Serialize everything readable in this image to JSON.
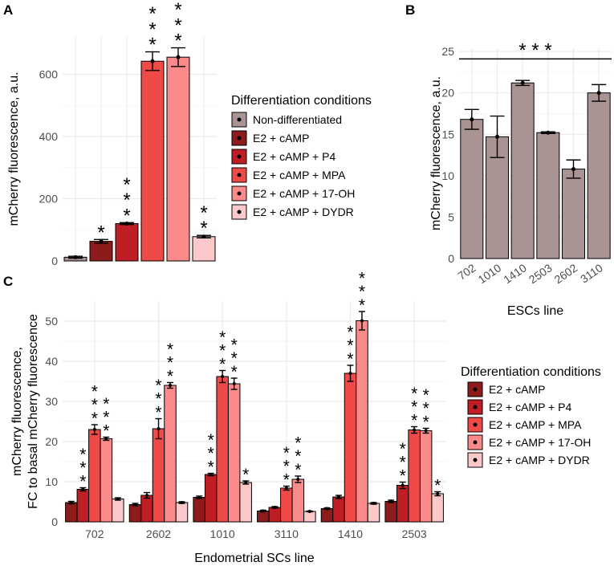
{
  "legend": {
    "title": "Differentiation conditions",
    "items": [
      "Non-differentiated",
      "E2 + cAMP",
      "E2 + cAMP + P4",
      "E2 + cAMP + MPA",
      "E2 + cAMP + 17-OH",
      "E2 + cAMP + DYDR"
    ]
  },
  "colors": {
    "Non-differentiated": "#a99393",
    "E2 + cAMP": "#8e1b1b",
    "E2 + cAMP + P4": "#be1e24",
    "E2 + cAMP + MPA": "#ee4a48",
    "E2 + cAMP + 17-OH": "#fb8a8a",
    "E2 + cAMP + DYDR": "#fcc9cb",
    "grid": "#ebebeb"
  },
  "chart_data": [
    {
      "panel": "A",
      "type": "bar",
      "ylabel": "mCherry fluorescence, a.u.",
      "xlabel": "",
      "ylim": [
        0,
        720
      ],
      "yticks": [
        0,
        200,
        400,
        600
      ],
      "categories": [
        "Non-differentiated",
        "E2 + cAMP",
        "E2 + cAMP + P4",
        "E2 + cAMP + MPA",
        "E2 + cAMP + 17-OH",
        "E2 + cAMP + DYDR"
      ],
      "values": [
        12,
        63,
        120,
        642,
        655,
        78
      ],
      "errors": [
        3,
        6,
        3,
        30,
        30,
        4
      ],
      "significance": [
        "",
        "*",
        "***",
        "***",
        "***",
        "**"
      ]
    },
    {
      "panel": "B",
      "type": "bar",
      "ylabel": "mCherry fluorescence, a.u.",
      "xlabel": "ESCs line",
      "ylim": [
        0,
        25.4
      ],
      "yticks": [
        0,
        5,
        10,
        15,
        20,
        25
      ],
      "categories": [
        "702",
        "1010",
        "1410",
        "2503",
        "2602",
        "3110"
      ],
      "values": [
        16.8,
        14.7,
        21.2,
        15.2,
        10.8,
        20.0
      ],
      "errors": [
        1.2,
        2.5,
        0.3,
        0.1,
        1.1,
        1.0
      ],
      "bracket_label": "***"
    },
    {
      "panel": "C",
      "type": "bar",
      "ylabel": [
        "mCherry fluorescence,",
        "FC to basal mCherry fluorescence"
      ],
      "xlabel": "Endometrial SCs line",
      "ylim": [
        0,
        55
      ],
      "yticks": [
        0,
        10,
        20,
        30,
        40,
        50
      ],
      "categories": [
        "702",
        "2602",
        "1010",
        "3110",
        "1410",
        "2503"
      ],
      "series": [
        {
          "name": "E2 + cAMP",
          "values": [
            4.8,
            4.3,
            6.1,
            2.7,
            3.3,
            5.1
          ],
          "errors": [
            0.3,
            0.3,
            0.3,
            0.2,
            0.2,
            0.3
          ],
          "significance": [
            "",
            "",
            "",
            "",
            "",
            ""
          ]
        },
        {
          "name": "E2 + cAMP + P4",
          "values": [
            8.1,
            6.6,
            11.8,
            3.6,
            6.2,
            9.1
          ],
          "errors": [
            0.4,
            0.7,
            0.3,
            0.2,
            0.4,
            0.8
          ],
          "significance": [
            "***",
            "",
            "***",
            "",
            "",
            "***"
          ]
        },
        {
          "name": "E2 + cAMP + MPA",
          "values": [
            23.0,
            23.2,
            36.2,
            8.4,
            37.0,
            22.9
          ],
          "errors": [
            1.2,
            2.5,
            1.5,
            0.5,
            2.0,
            0.8
          ],
          "significance": [
            "***",
            "***",
            "***",
            "***",
            "***",
            "***"
          ]
        },
        {
          "name": "E2 + cAMP + 17-OH",
          "values": [
            20.7,
            34.0,
            34.4,
            10.6,
            50.1,
            22.7
          ],
          "errors": [
            0.4,
            0.7,
            1.4,
            0.8,
            2.3,
            0.6
          ],
          "significance": [
            "***",
            "***",
            "***",
            "***",
            "***",
            "***"
          ]
        },
        {
          "name": "E2 + cAMP + DYDR",
          "values": [
            5.7,
            4.8,
            9.8,
            2.6,
            4.6,
            7.0
          ],
          "errors": [
            0.3,
            0.2,
            0.4,
            0.1,
            0.2,
            0.5
          ],
          "significance": [
            "",
            "",
            "*",
            "",
            "",
            "*"
          ]
        }
      ]
    }
  ],
  "labels": {
    "panel_a": "A",
    "panel_b": "B",
    "panel_c": "C"
  }
}
